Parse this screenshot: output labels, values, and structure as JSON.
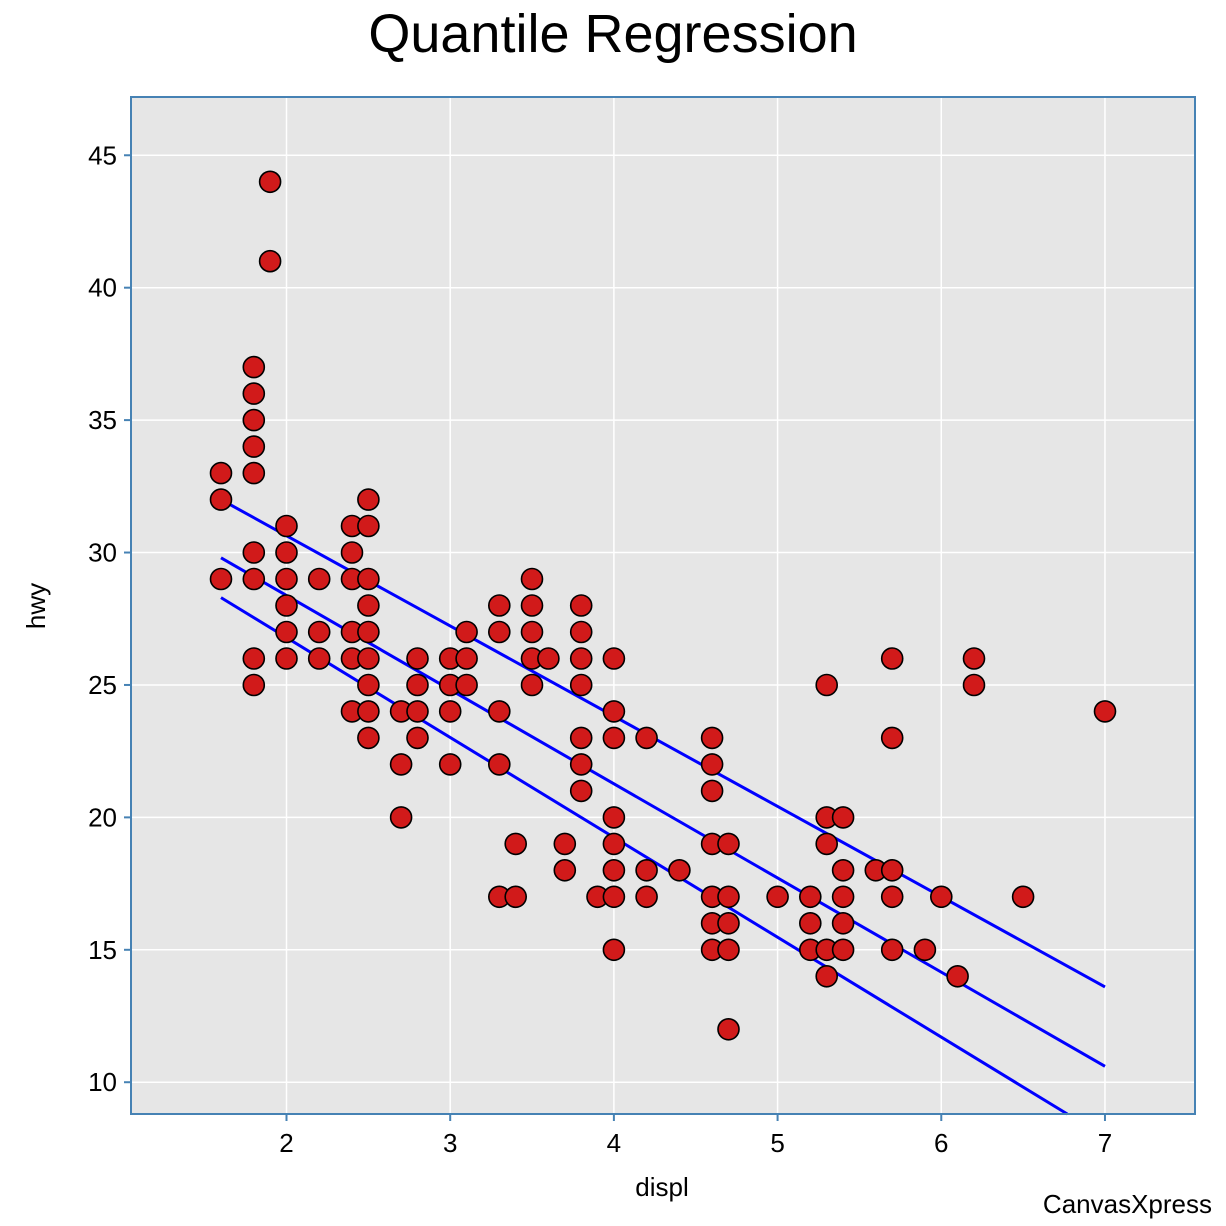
{
  "chart_data": {
    "type": "scatter",
    "title": "Quantile Regression",
    "xlabel": "displ",
    "ylabel": "hwy",
    "credit": "CanvasXpress",
    "xlim": [
      1.05,
      7.55
    ],
    "ylim": [
      8.8,
      47.2
    ],
    "xticks": [
      2,
      3,
      4,
      5,
      6,
      7
    ],
    "yticks": [
      10,
      15,
      20,
      25,
      30,
      35,
      40,
      45
    ],
    "grid": true,
    "legend": "none",
    "colors": {
      "panel_background": "#e6e6e6",
      "panel_border": "#4682b4",
      "gridline": "#ffffff",
      "point_fill": "#d11a1a",
      "point_stroke": "#000000",
      "regression_line": "#0000ff"
    },
    "points": [
      {
        "x": 1.9,
        "y": 44
      },
      {
        "x": 1.9,
        "y": 41
      },
      {
        "x": 1.8,
        "y": 37
      },
      {
        "x": 1.8,
        "y": 36
      },
      {
        "x": 1.8,
        "y": 35
      },
      {
        "x": 1.8,
        "y": 34
      },
      {
        "x": 1.8,
        "y": 33
      },
      {
        "x": 1.6,
        "y": 33
      },
      {
        "x": 1.6,
        "y": 32
      },
      {
        "x": 1.6,
        "y": 29
      },
      {
        "x": 1.8,
        "y": 30
      },
      {
        "x": 1.8,
        "y": 29
      },
      {
        "x": 1.8,
        "y": 26
      },
      {
        "x": 1.8,
        "y": 25
      },
      {
        "x": 2.0,
        "y": 31
      },
      {
        "x": 2.0,
        "y": 30
      },
      {
        "x": 2.0,
        "y": 29
      },
      {
        "x": 2.0,
        "y": 28
      },
      {
        "x": 2.0,
        "y": 27
      },
      {
        "x": 2.0,
        "y": 26
      },
      {
        "x": 2.2,
        "y": 29
      },
      {
        "x": 2.2,
        "y": 27
      },
      {
        "x": 2.2,
        "y": 26
      },
      {
        "x": 2.4,
        "y": 31
      },
      {
        "x": 2.4,
        "y": 30
      },
      {
        "x": 2.4,
        "y": 29
      },
      {
        "x": 2.4,
        "y": 27
      },
      {
        "x": 2.4,
        "y": 26
      },
      {
        "x": 2.4,
        "y": 24
      },
      {
        "x": 2.5,
        "y": 32
      },
      {
        "x": 2.5,
        "y": 31
      },
      {
        "x": 2.5,
        "y": 29
      },
      {
        "x": 2.5,
        "y": 28
      },
      {
        "x": 2.5,
        "y": 27
      },
      {
        "x": 2.5,
        "y": 26
      },
      {
        "x": 2.5,
        "y": 25
      },
      {
        "x": 2.5,
        "y": 24
      },
      {
        "x": 2.5,
        "y": 23
      },
      {
        "x": 2.7,
        "y": 24
      },
      {
        "x": 2.7,
        "y": 22
      },
      {
        "x": 2.7,
        "y": 20
      },
      {
        "x": 2.8,
        "y": 26
      },
      {
        "x": 2.8,
        "y": 25
      },
      {
        "x": 2.8,
        "y": 24
      },
      {
        "x": 2.8,
        "y": 23
      },
      {
        "x": 3.0,
        "y": 26
      },
      {
        "x": 3.0,
        "y": 25
      },
      {
        "x": 3.0,
        "y": 24
      },
      {
        "x": 3.0,
        "y": 22
      },
      {
        "x": 3.1,
        "y": 27
      },
      {
        "x": 3.1,
        "y": 26
      },
      {
        "x": 3.1,
        "y": 25
      },
      {
        "x": 3.3,
        "y": 28
      },
      {
        "x": 3.3,
        "y": 27
      },
      {
        "x": 3.3,
        "y": 24
      },
      {
        "x": 3.3,
        "y": 22
      },
      {
        "x": 3.3,
        "y": 17
      },
      {
        "x": 3.4,
        "y": 19
      },
      {
        "x": 3.4,
        "y": 17
      },
      {
        "x": 3.5,
        "y": 29
      },
      {
        "x": 3.5,
        "y": 28
      },
      {
        "x": 3.5,
        "y": 27
      },
      {
        "x": 3.5,
        "y": 26
      },
      {
        "x": 3.5,
        "y": 25
      },
      {
        "x": 3.6,
        "y": 26
      },
      {
        "x": 3.7,
        "y": 19
      },
      {
        "x": 3.7,
        "y": 18
      },
      {
        "x": 3.8,
        "y": 28
      },
      {
        "x": 3.8,
        "y": 27
      },
      {
        "x": 3.8,
        "y": 26
      },
      {
        "x": 3.8,
        "y": 25
      },
      {
        "x": 3.8,
        "y": 23
      },
      {
        "x": 3.8,
        "y": 22
      },
      {
        "x": 3.8,
        "y": 21
      },
      {
        "x": 3.9,
        "y": 17
      },
      {
        "x": 4.0,
        "y": 26
      },
      {
        "x": 4.0,
        "y": 24
      },
      {
        "x": 4.0,
        "y": 23
      },
      {
        "x": 4.0,
        "y": 20
      },
      {
        "x": 4.0,
        "y": 19
      },
      {
        "x": 4.0,
        "y": 18
      },
      {
        "x": 4.0,
        "y": 17
      },
      {
        "x": 4.0,
        "y": 15
      },
      {
        "x": 4.2,
        "y": 23
      },
      {
        "x": 4.2,
        "y": 18
      },
      {
        "x": 4.2,
        "y": 17
      },
      {
        "x": 4.4,
        "y": 18
      },
      {
        "x": 4.6,
        "y": 23
      },
      {
        "x": 4.6,
        "y": 22
      },
      {
        "x": 4.6,
        "y": 21
      },
      {
        "x": 4.6,
        "y": 19
      },
      {
        "x": 4.6,
        "y": 17
      },
      {
        "x": 4.6,
        "y": 16
      },
      {
        "x": 4.6,
        "y": 15
      },
      {
        "x": 4.7,
        "y": 19
      },
      {
        "x": 4.7,
        "y": 17
      },
      {
        "x": 4.7,
        "y": 16
      },
      {
        "x": 4.7,
        "y": 15
      },
      {
        "x": 4.7,
        "y": 12
      },
      {
        "x": 5.0,
        "y": 17
      },
      {
        "x": 5.2,
        "y": 17
      },
      {
        "x": 5.2,
        "y": 16
      },
      {
        "x": 5.2,
        "y": 15
      },
      {
        "x": 5.3,
        "y": 25
      },
      {
        "x": 5.3,
        "y": 20
      },
      {
        "x": 5.3,
        "y": 19
      },
      {
        "x": 5.3,
        "y": 15
      },
      {
        "x": 5.3,
        "y": 14
      },
      {
        "x": 5.4,
        "y": 20
      },
      {
        "x": 5.4,
        "y": 18
      },
      {
        "x": 5.4,
        "y": 17
      },
      {
        "x": 5.4,
        "y": 16
      },
      {
        "x": 5.4,
        "y": 15
      },
      {
        "x": 5.6,
        "y": 18
      },
      {
        "x": 5.7,
        "y": 26
      },
      {
        "x": 5.7,
        "y": 23
      },
      {
        "x": 5.7,
        "y": 18
      },
      {
        "x": 5.7,
        "y": 17
      },
      {
        "x": 5.7,
        "y": 15
      },
      {
        "x": 5.9,
        "y": 15
      },
      {
        "x": 6.0,
        "y": 17
      },
      {
        "x": 6.1,
        "y": 14
      },
      {
        "x": 6.2,
        "y": 26
      },
      {
        "x": 6.2,
        "y": 25
      },
      {
        "x": 6.5,
        "y": 17
      },
      {
        "x": 7.0,
        "y": 24
      }
    ],
    "series": [
      {
        "x": [
          1.6,
          7.0
        ],
        "y": [
          32.0,
          13.6
        ]
      },
      {
        "x": [
          1.6,
          7.0
        ],
        "y": [
          29.8,
          10.6
        ]
      },
      {
        "x": [
          1.6,
          6.77
        ],
        "y": [
          28.3,
          8.8
        ]
      }
    ]
  }
}
